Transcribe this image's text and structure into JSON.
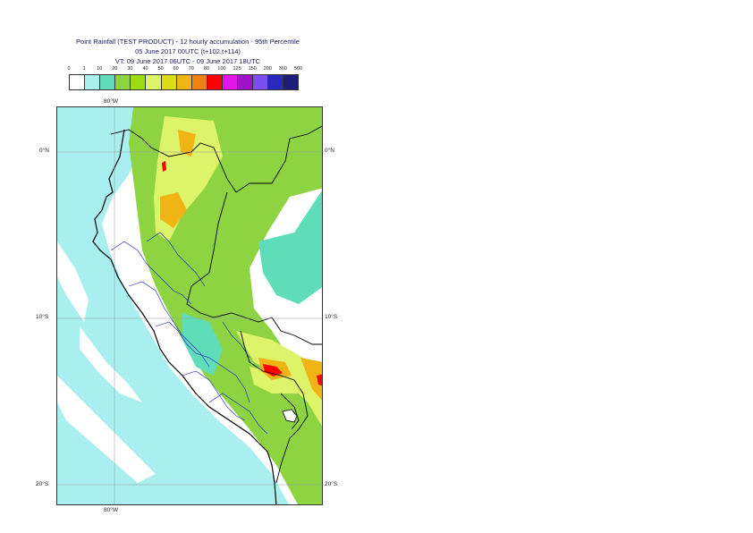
{
  "title": {
    "line1": "Point Rainfall (TEST PRODUCT) - 12 hourly accumulation - 95th Percentile",
    "line2": "05 June 2017 00UTC (t+102,t+114)",
    "line3": "VT: 09 June 2017 06UTC - 09 June 2017 18UTC"
  },
  "legend": {
    "ticks": [
      "0",
      "1",
      "10",
      "20",
      "30",
      "40",
      "50",
      "60",
      "70",
      "80",
      "100",
      "125",
      "150",
      "200",
      "300",
      "500"
    ],
    "colors": [
      "#ffffff",
      "#a9efef",
      "#5fdcb8",
      "#8ed442",
      "#9ddc14",
      "#ddf36a",
      "#dcdc14",
      "#f0b414",
      "#f08214",
      "#ff0000",
      "#e614e6",
      "#a014c8",
      "#7850f0",
      "#2828be",
      "#1e1e78"
    ]
  },
  "axes": {
    "lon_top": "80°W",
    "lon_bottom": "80°W",
    "lat_0_left": "0°N",
    "lat_0_right": "0°N",
    "lat_10_left": "10°S",
    "lat_10_right": "10°S",
    "lat_20_left": "20°S",
    "lat_20_right": "20°S"
  }
}
